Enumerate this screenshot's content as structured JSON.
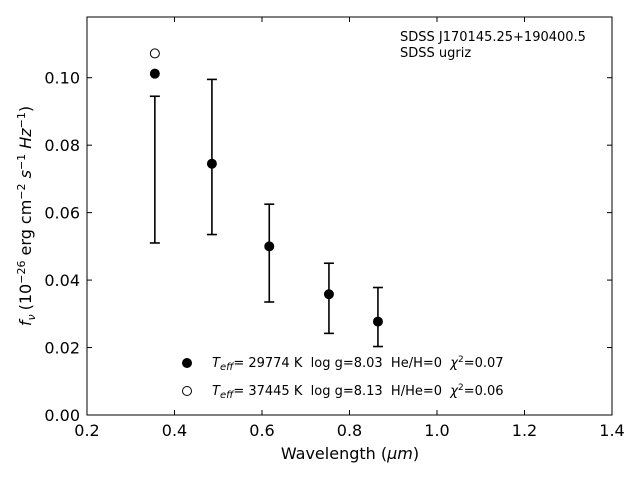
{
  "chart_data": {
    "type": "scatter",
    "xlabel": "Wavelength (μm)",
    "xlabel_plain": "Wavelength (",
    "xlabel_unit": "μm",
    "xlabel_close": ")",
    "ylabel_prefix": "f",
    "ylabel_sub": "ν",
    "ylabel_rest": "(10",
    "ylabel_exp1": "−26",
    "ylabel_units": " erg cm",
    "ylabel_exp2": "−2",
    "ylabel_s": " s",
    "ylabel_exp3": "−1",
    "ylabel_hz": " Hz",
    "ylabel_exp4": "−1",
    "ylabel_close": ")",
    "xlim": [
      0.2,
      1.4
    ],
    "ylim": [
      0.0,
      0.118
    ],
    "xticks": [
      0.2,
      0.4,
      0.6,
      0.8,
      1.0,
      1.2,
      1.4
    ],
    "xtick_labels": [
      "0.2",
      "0.4",
      "0.6",
      "0.8",
      "1.0",
      "1.2",
      "1.4"
    ],
    "yticks": [
      0.0,
      0.02,
      0.04,
      0.06,
      0.08,
      0.1
    ],
    "ytick_labels": [
      "0.00",
      "0.02",
      "0.04",
      "0.06",
      "0.08",
      "0.10"
    ],
    "annotation_lines": [
      "SDSS J170145.25+190400.5",
      "SDSS ugriz"
    ],
    "observed": {
      "x": [
        0.3551,
        0.4686,
        0.6166,
        0.748,
        0.8932
      ],
      "xerr_note": "",
      "err_x": [
        0.3551,
        0.4855,
        0.6166,
        0.753,
        0.865
      ],
      "y_upper": [
        0.0945,
        0.0995,
        0.0625,
        0.045,
        0.0378
      ],
      "y_lower": [
        0.051,
        0.0535,
        0.0335,
        0.0242,
        0.0203
      ]
    },
    "series": [
      {
        "name": "Teff= 29774 K  log g=8.03  He/H=0  χ2=0.07",
        "marker": "filled-circle",
        "x": [
          0.3551,
          0.4855,
          0.6166,
          0.753,
          0.865
        ],
        "y": [
          0.1012,
          0.0745,
          0.05,
          0.0358,
          0.0277
        ]
      },
      {
        "name": "Teff= 37445 K  log g=8.13  H/He=0  χ2=0.06",
        "marker": "open-circle",
        "x": [
          0.3551
        ],
        "y": [
          0.1072
        ]
      }
    ],
    "legend": [
      {
        "marker": "filled-circle",
        "t": "T",
        "t_sub": "eff",
        "rest": "= 29774 K  log g=8.03  He/H=0  ",
        "chi": "χ",
        "chi_sup": "2",
        "chi_rest": "=0.07"
      },
      {
        "marker": "open-circle",
        "t": "T",
        "t_sub": "eff",
        "rest": "= 37445 K  log g=8.13  H/He=0  ",
        "chi": "χ",
        "chi_sup": "2",
        "chi_rest": "=0.06"
      }
    ],
    "legend_position": "lower-center",
    "grid": false
  }
}
